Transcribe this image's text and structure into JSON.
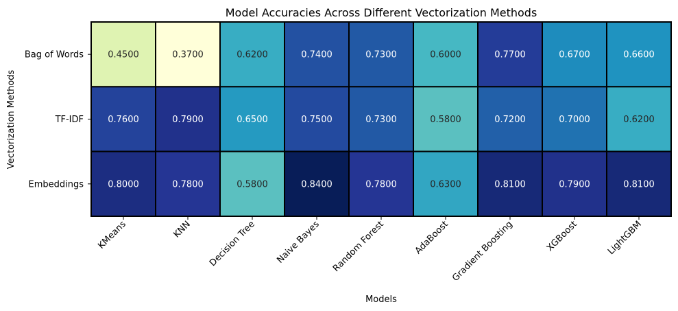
{
  "chart_data": {
    "type": "heatmap",
    "title": "Model Accuracies Across Different Vectorization Methods",
    "xlabel": "Models",
    "ylabel": "Vectorization Methods",
    "x_categories": [
      "KMeans",
      "KNN",
      "Decision Tree",
      "Naive Bayes",
      "Random Forest",
      "AdaBoost",
      "Gradient Boosting",
      "XGBoost",
      "LightGBM"
    ],
    "y_categories": [
      "Bag of Words",
      "TF-IDF",
      "Embeddings"
    ],
    "values": [
      [
        0.45,
        0.37,
        0.62,
        0.74,
        0.73,
        0.6,
        0.77,
        0.67,
        0.66
      ],
      [
        0.76,
        0.79,
        0.65,
        0.75,
        0.73,
        0.58,
        0.72,
        0.7,
        0.62
      ],
      [
        0.8,
        0.78,
        0.58,
        0.84,
        0.78,
        0.63,
        0.81,
        0.79,
        0.81
      ]
    ],
    "value_format": "0.0000",
    "colormap": "YlGnBu",
    "colorbar": false,
    "cell_border_color": "#000000",
    "label_color_dark": "#262626",
    "label_color_light": "#ffffff"
  }
}
